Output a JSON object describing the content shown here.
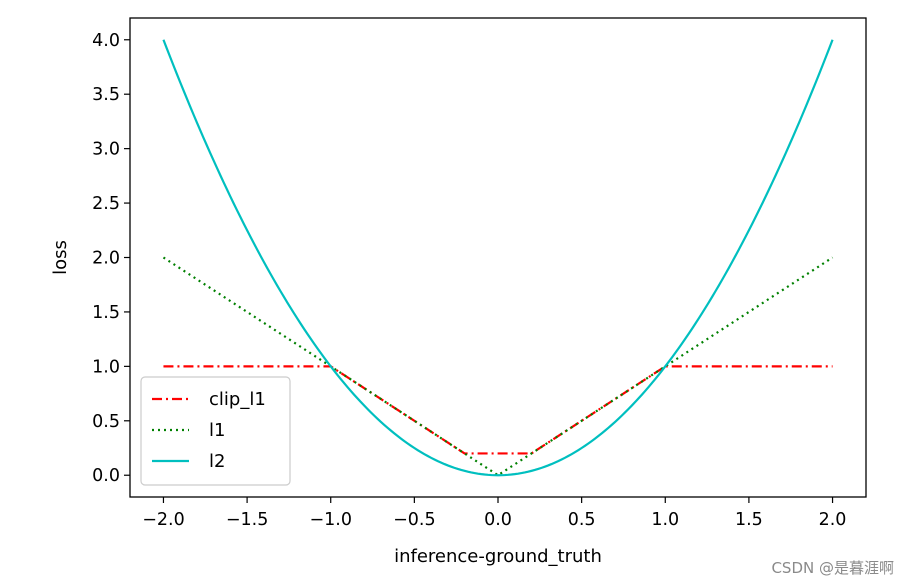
{
  "chart_data": {
    "type": "line",
    "xlabel": "inference-ground_truth",
    "ylabel": "loss",
    "xlim": [
      -2.2,
      2.2
    ],
    "ylim": [
      -0.2,
      4.2
    ],
    "x_ticks": [
      "−2.0",
      "−1.5",
      "−1.0",
      "−0.5",
      "0.0",
      "0.5",
      "1.0",
      "1.5",
      "2.0"
    ],
    "y_ticks": [
      "0.0",
      "0.5",
      "1.0",
      "1.5",
      "2.0",
      "2.5",
      "3.0",
      "3.5",
      "4.0"
    ],
    "x": [
      -2.0,
      -1.0,
      -0.2,
      0.0,
      0.2,
      1.0,
      2.0
    ],
    "legend_position": "lower-left",
    "grid": false,
    "series": [
      {
        "name": "clip_l1",
        "color": "#ff0000",
        "style": "dashdot",
        "points": [
          [
            -2.0,
            1.0
          ],
          [
            -1.0,
            1.0
          ],
          [
            -0.2,
            0.2
          ],
          [
            0.2,
            0.2
          ],
          [
            1.0,
            1.0
          ],
          [
            2.0,
            1.0
          ]
        ]
      },
      {
        "name": "l1",
        "color": "#008000",
        "style": "dotted",
        "points": [
          [
            -2.0,
            2.0
          ],
          [
            0.0,
            0.0
          ],
          [
            2.0,
            2.0
          ]
        ]
      },
      {
        "name": "l2",
        "color": "#00bfbf",
        "style": "solid",
        "function": "x^2",
        "x_range": [
          -2.0,
          2.0
        ]
      }
    ]
  },
  "watermark": "CSDN @是暮涯啊"
}
